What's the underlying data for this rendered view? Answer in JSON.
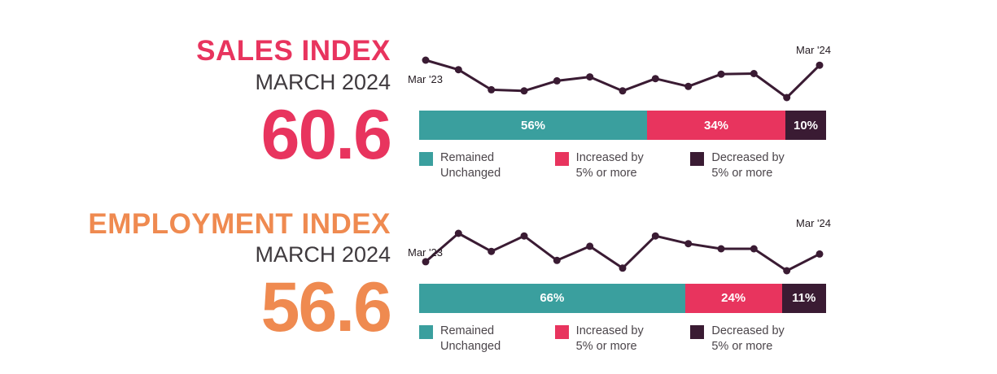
{
  "page": {
    "background": "#ffffff"
  },
  "panels": [
    {
      "title": "SALES INDEX",
      "subtitle": "MARCH 2024",
      "value": "60.6",
      "accent": "#e8345e"
    },
    {
      "title": "EMPLOYMENT INDEX",
      "subtitle": "MARCH 2024",
      "value": "56.6",
      "accent": "#ef8a50"
    }
  ],
  "chart_data": [
    {
      "type": "line+stacked-bar",
      "title": "Sales Index trend",
      "line": {
        "x_start_label": "Mar '23",
        "x_end_label": "Mar '24",
        "values": [
          61.5,
          59.8,
          56.2,
          56.0,
          57.8,
          58.5,
          56.0,
          58.2,
          56.8,
          59.0,
          59.1,
          54.8,
          60.6
        ],
        "color": "#3a1b33"
      },
      "bar": {
        "segments": [
          {
            "name": "Remained Unchanged",
            "label": "56%",
            "value": 56,
            "color": "#3a9f9e"
          },
          {
            "name": "Increased by 5% or more",
            "label": "34%",
            "value": 34,
            "color": "#e8345e"
          },
          {
            "name": "Decreased by 5% or more",
            "label": "10%",
            "value": 10,
            "color": "#3a1b33"
          }
        ]
      },
      "legend": [
        {
          "line1": "Remained",
          "line2": "Unchanged",
          "color": "#3a9f9e"
        },
        {
          "line1": "Increased by",
          "line2": "5% or more",
          "color": "#e8345e"
        },
        {
          "line1": "Decreased by",
          "line2": "5% or more",
          "color": "#3a1b33"
        }
      ]
    },
    {
      "type": "line+stacked-bar",
      "title": "Employment Index trend",
      "line": {
        "x_start_label": "Mar '23",
        "x_end_label": "Mar '24",
        "values": [
          56.0,
          58.2,
          56.8,
          58.0,
          56.1,
          57.2,
          55.5,
          58.0,
          57.4,
          57.0,
          57.0,
          55.3,
          56.6
        ],
        "color": "#3a1b33"
      },
      "bar": {
        "segments": [
          {
            "name": "Remained Unchanged",
            "label": "66%",
            "value": 66,
            "color": "#3a9f9e"
          },
          {
            "name": "Increased by 5% or more",
            "label": "24%",
            "value": 24,
            "color": "#e8345e"
          },
          {
            "name": "Decreased by 5% or more",
            "label": "11%",
            "value": 11,
            "color": "#3a1b33"
          }
        ]
      },
      "legend": [
        {
          "line1": "Remained",
          "line2": "Unchanged",
          "color": "#3a9f9e"
        },
        {
          "line1": "Increased by",
          "line2": "5% or more",
          "color": "#e8345e"
        },
        {
          "line1": "Decreased by",
          "line2": "5% or more",
          "color": "#3a1b33"
        }
      ]
    }
  ]
}
